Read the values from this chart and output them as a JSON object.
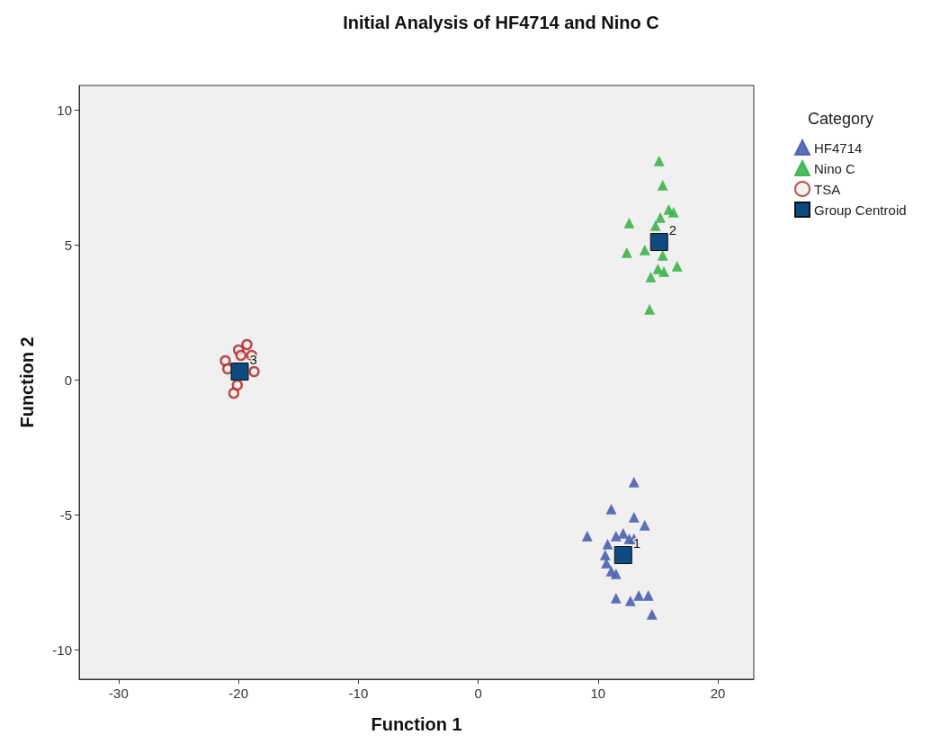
{
  "chart_data": {
    "type": "scatter",
    "title": "Initial Analysis of HF4714 and Nino C",
    "xlabel": "Function 1",
    "ylabel": "Function 2",
    "legend_title": "Category",
    "legend": "right",
    "grid": false,
    "xlim": [
      -33.3,
      23
    ],
    "ylim": [
      -11.1,
      10.9
    ],
    "xticks": [
      -30,
      -20,
      -10,
      0,
      10,
      20
    ],
    "yticks": [
      -10,
      -5,
      0,
      5,
      10
    ],
    "series": [
      {
        "name": "HF4714",
        "color": "#4a5fb0",
        "marker": "triangle",
        "x": [
          13.0,
          11.1,
          13.0,
          13.9,
          9.1,
          11.5,
          12.1,
          12.6,
          13.0,
          10.6,
          10.7,
          11.1,
          11.5,
          11.5,
          12.7,
          13.4,
          14.2,
          14.5,
          10.8
        ],
        "values": [
          -3.8,
          -4.8,
          -5.1,
          -5.4,
          -5.8,
          -5.8,
          -5.7,
          -5.9,
          -5.9,
          -6.5,
          -6.8,
          -7.1,
          -7.2,
          -8.1,
          -8.2,
          -8.0,
          -8.0,
          -8.7,
          -6.1
        ]
      },
      {
        "name": "Nino C",
        "color": "#3cb44a",
        "marker": "triangle",
        "x": [
          15.1,
          15.4,
          12.6,
          15.9,
          16.3,
          15.2,
          14.8,
          12.4,
          13.9,
          15.4,
          15.0,
          15.5,
          16.6,
          14.4,
          14.3
        ],
        "values": [
          8.1,
          7.2,
          5.8,
          6.3,
          6.2,
          6.0,
          5.7,
          4.7,
          4.8,
          4.6,
          4.1,
          4.0,
          4.2,
          3.8,
          2.6
        ]
      },
      {
        "name": "TSA",
        "color": "#b22222",
        "marker": "circle",
        "x": [
          -19.3,
          -20.0,
          -21.1,
          -18.7,
          -20.4,
          -18.9,
          -20.9,
          -19.8,
          -20.1
        ],
        "values": [
          1.3,
          1.1,
          0.7,
          0.3,
          -0.5,
          0.9,
          0.4,
          0.9,
          -0.2
        ]
      },
      {
        "name": "Group Centroid",
        "color": "#0d4a80",
        "marker": "square",
        "x": [
          12.1,
          15.1,
          -19.9
        ],
        "values": [
          -6.5,
          5.1,
          0.3
        ]
      }
    ],
    "annotations": [
      {
        "text": "1",
        "x": 12.1,
        "y": -6.5
      },
      {
        "text": "2",
        "x": 15.1,
        "y": 5.1
      },
      {
        "text": "3",
        "x": -19.9,
        "y": 0.3
      }
    ]
  }
}
